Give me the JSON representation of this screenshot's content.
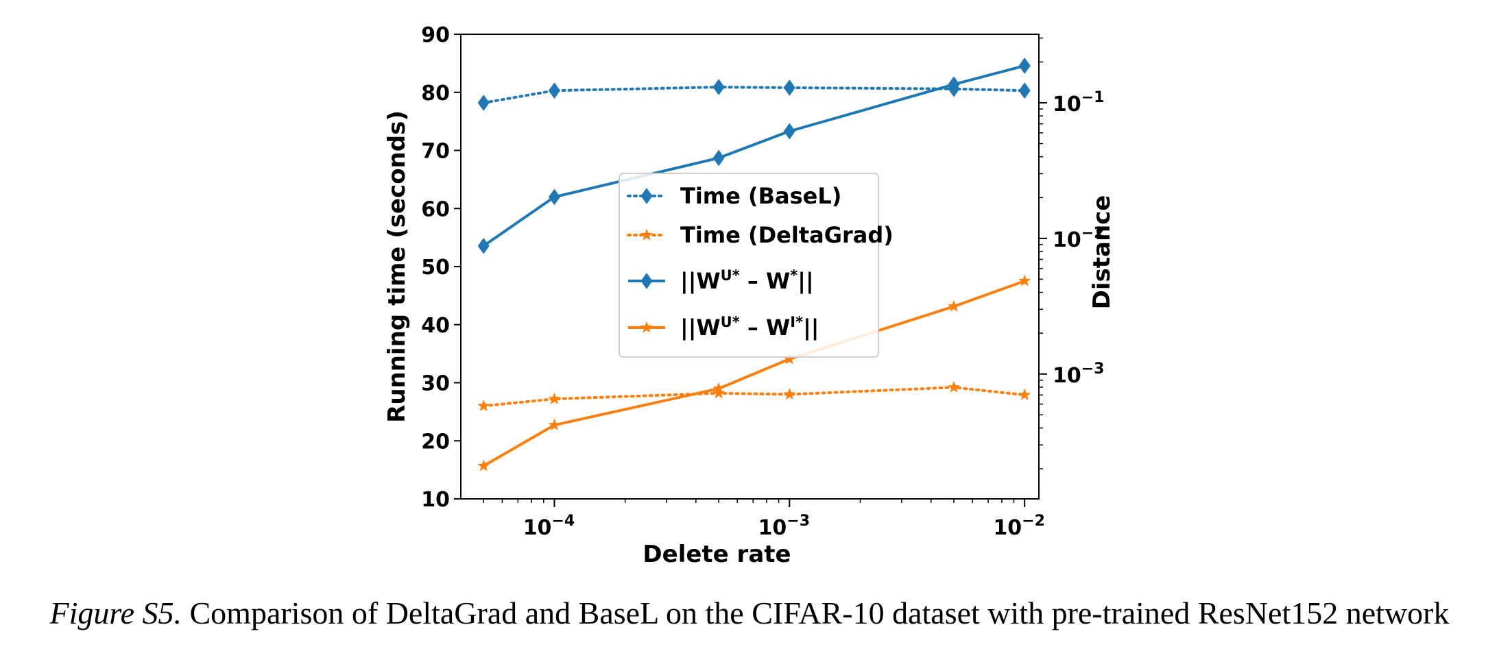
{
  "caption": {
    "label": "Figure S5.",
    "text": "Comparison of DeltaGrad and BaseL on the CIFAR-10 dataset with pre-trained ResNet152 network"
  },
  "chart_data": {
    "type": "line",
    "title": "",
    "xlabel": "Delete rate",
    "ylabel": "Running time (seconds)",
    "y2label": "Distance",
    "x_scale": "log",
    "xlim": [
      4e-05,
      0.0115
    ],
    "ylim": [
      10,
      90
    ],
    "y2_scale": "log",
    "y2lim": [
      0.00012,
      0.32
    ],
    "x_ticks": [
      0.0001,
      0.001,
      0.01
    ],
    "x_tick_labels": [
      {
        "base": "10",
        "exp": "−4"
      },
      {
        "base": "10",
        "exp": "−3"
      },
      {
        "base": "10",
        "exp": "−2"
      }
    ],
    "y_ticks": [
      10,
      20,
      30,
      40,
      50,
      60,
      70,
      80,
      90
    ],
    "y2_ticks": [
      0.001,
      0.01,
      0.1
    ],
    "y2_tick_labels": [
      {
        "base": "10",
        "exp": "−3"
      },
      {
        "base": "10",
        "exp": "−2"
      },
      {
        "base": "10",
        "exp": "−1"
      }
    ],
    "x": [
      5e-05,
      0.0001,
      0.0005,
      0.001,
      0.005,
      0.01
    ],
    "series": [
      {
        "id": "time-basel",
        "axis": "left",
        "style": "dotted",
        "marker": "diamond",
        "color": "#1f77b4",
        "values": [
          78.2,
          80.3,
          80.9,
          80.8,
          80.6,
          80.3
        ]
      },
      {
        "id": "time-deltagrad",
        "axis": "left",
        "style": "dotted",
        "marker": "star",
        "color": "#ff7f0e",
        "values": [
          26.0,
          27.2,
          28.2,
          28.0,
          29.2,
          27.9
        ]
      },
      {
        "id": "dist-wu-w",
        "axis": "right",
        "style": "solid",
        "marker": "diamond",
        "color": "#1f77b4",
        "values": [
          0.0088,
          0.0202,
          0.0392,
          0.0617,
          0.1365,
          0.1875
        ]
      },
      {
        "id": "dist-wu-wi",
        "axis": "right",
        "style": "solid",
        "marker": "star",
        "color": "#ff7f0e",
        "values": [
          0.00021,
          0.00042,
          0.00078,
          0.00129,
          0.00315,
          0.00485
        ]
      }
    ],
    "legend": {
      "position": "center",
      "entries": [
        {
          "series": "time-basel",
          "text": "Time (BaseL)"
        },
        {
          "series": "time-deltagrad",
          "text": "Time (DeltaGrad)"
        },
        {
          "series": "dist-wu-w",
          "parts": [
            {
              "t": "||W",
              "sup": false
            },
            {
              "t": "U*",
              "sup": true
            },
            {
              "t": " – W",
              "sup": false
            },
            {
              "t": "*",
              "sup": true
            },
            {
              "t": "||",
              "sup": false
            }
          ]
        },
        {
          "series": "dist-wu-wi",
          "parts": [
            {
              "t": "||W",
              "sup": false
            },
            {
              "t": "U*",
              "sup": true
            },
            {
              "t": " – W",
              "sup": false
            },
            {
              "t": "I*",
              "sup": true
            },
            {
              "t": "||",
              "sup": false
            }
          ]
        }
      ]
    },
    "grid": false
  }
}
